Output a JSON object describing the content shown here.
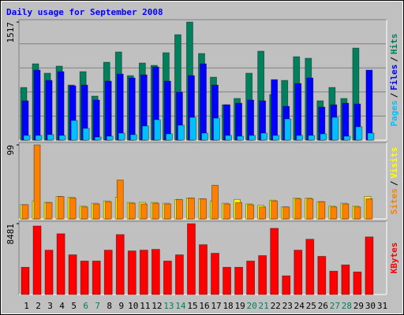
{
  "chart_data": [
    {
      "type": "bar",
      "title": "Daily usage for September 2008",
      "ylim": [
        0,
        1517
      ],
      "yticks": [
        1517
      ],
      "series": [
        {
          "name": "Hits",
          "color": "#00805c",
          "values": [
            677,
            981,
            860,
            951,
            708,
            880,
            566,
            1001,
            1133,
            829,
            991,
            961,
            1123,
            1355,
            1517,
            1113,
            809,
            455,
            536,
            860,
            1143,
            586,
            768,
            1072,
            1052,
            506,
            677,
            536,
            1183,
            null,
            null
          ]
        },
        {
          "name": "Files",
          "color": "#0000ff",
          "values": [
            506,
            900,
            768,
            880,
            698,
            708,
            516,
            758,
            849,
            799,
            839,
            940,
            758,
            617,
            829,
            981,
            708,
            455,
            475,
            516,
            506,
            778,
            435,
            728,
            799,
            425,
            455,
            475,
            465,
            900,
            null
          ]
        },
        {
          "name": "Pages",
          "color": "#00c0ff",
          "values": [
            61,
            61,
            71,
            61,
            253,
            152,
            40,
            51,
            91,
            71,
            182,
            263,
            81,
            192,
            293,
            91,
            283,
            61,
            51,
            61,
            91,
            61,
            273,
            61,
            61,
            81,
            293,
            51,
            172,
            91,
            null
          ]
        }
      ]
    },
    {
      "type": "bar",
      "ylim": [
        0,
        99
      ],
      "yticks": [
        99
      ],
      "series": [
        {
          "name": "Visits",
          "color": "#ffff00",
          "values": [
            19,
            24,
            22,
            30,
            29,
            17,
            21,
            24,
            29,
            22,
            22,
            22,
            21,
            26,
            28,
            27,
            24,
            21,
            26,
            20,
            18,
            25,
            16,
            28,
            28,
            23,
            17,
            21,
            17,
            30,
            null
          ]
        },
        {
          "name": "Sites",
          "color": "#ff8000",
          "values": [
            19,
            99,
            22,
            30,
            28,
            16,
            20,
            23,
            52,
            21,
            20,
            21,
            20,
            26,
            28,
            27,
            45,
            20,
            22,
            19,
            16,
            24,
            16,
            27,
            27,
            23,
            16,
            20,
            16,
            27,
            null
          ]
        }
      ]
    },
    {
      "type": "bar",
      "ylim": [
        0,
        8481
      ],
      "yticks": [
        8481
      ],
      "categories": [
        "1",
        "2",
        "3",
        "4",
        "5",
        "6",
        "7",
        "8",
        "9",
        "10",
        "11",
        "12",
        "13",
        "14",
        "15",
        "16",
        "17",
        "18",
        "19",
        "20",
        "21",
        "22",
        "23",
        "24",
        "25",
        "26",
        "27",
        "28",
        "29",
        "30",
        "31"
      ],
      "category_colors": [
        "#000",
        "#000",
        "#000",
        "#000",
        "#000",
        "#00805c",
        "#00805c",
        "#000",
        "#000",
        "#000",
        "#000",
        "#000",
        "#00805c",
        "#00805c",
        "#000",
        "#000",
        "#000",
        "#000",
        "#000",
        "#00805c",
        "#00805c",
        "#000",
        "#000",
        "#000",
        "#000",
        "#000",
        "#00805c",
        "#00805c",
        "#000",
        "#000",
        "#000"
      ],
      "series": [
        {
          "name": "KBytes",
          "color": "#ff0000",
          "values": [
            3262,
            8200,
            5312,
            7270,
            4753,
            4008,
            4008,
            5312,
            7176,
            5219,
            5312,
            5406,
            4008,
            4753,
            8481,
            5965,
            4940,
            3262,
            3262,
            4008,
            4660,
            7922,
            2237,
            5312,
            6617,
            4567,
            2796,
            3542,
            2703,
            6897,
            null
          ]
        }
      ]
    }
  ],
  "legend_separator": "/"
}
